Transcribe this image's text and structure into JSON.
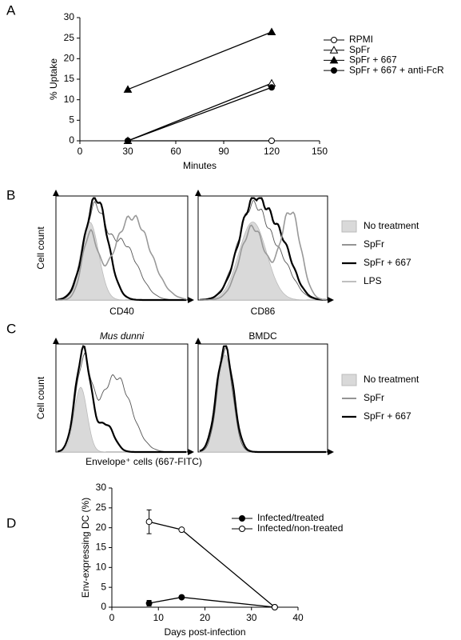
{
  "chart_data": [
    {
      "type": "line",
      "panel": "A",
      "xlabel": "Minutes",
      "ylabel": "% Uptake",
      "x": [
        30,
        120
      ],
      "xlim": [
        0,
        150
      ],
      "xticks": [
        0,
        30,
        60,
        90,
        120,
        150
      ],
      "ylim": [
        0,
        30
      ],
      "yticks": [
        0,
        5,
        10,
        15,
        20,
        25,
        30
      ],
      "legend": "right",
      "series": [
        {
          "name": "RPMI",
          "color": "#000000",
          "marker": "circle",
          "filled": false,
          "values": [
            0,
            0
          ]
        },
        {
          "name": "SpFr",
          "color": "#000000",
          "marker": "triangle",
          "filled": false,
          "values": [
            0,
            14
          ]
        },
        {
          "name": "SpFr + 667",
          "color": "#000000",
          "marker": "triangle",
          "filled": true,
          "values": [
            12.5,
            26.5
          ]
        },
        {
          "name": "SpFr + 667 + anti-FcR",
          "color": "#000000",
          "marker": "circle",
          "filled": true,
          "values": [
            0,
            13
          ]
        }
      ]
    },
    {
      "type": "density",
      "panel": "B",
      "ylabel": "Cell count",
      "xlabels": [
        "CD40",
        "CD86"
      ],
      "series": [
        {
          "name": "No treatment",
          "color": "#d9d9d9"
        },
        {
          "name": "SpFr",
          "color": "#555555"
        },
        {
          "name": "SpFr + 667",
          "color": "#000000"
        },
        {
          "name": "LPS",
          "color": "#999999"
        }
      ]
    },
    {
      "type": "density",
      "panel": "C",
      "ylabel": "Cell count",
      "titles": [
        "Mus dunni",
        "BMDC"
      ],
      "xlabel": "Envelope⁺ cells (667-FITC)",
      "series": [
        {
          "name": "No treatment",
          "color": "#d9d9d9"
        },
        {
          "name": "SpFr",
          "color": "#555555"
        },
        {
          "name": "SpFr + 667",
          "color": "#000000"
        }
      ]
    },
    {
      "type": "line",
      "panel": "D",
      "xlabel": "Days post-infection",
      "ylabel": "Env-expressing DC (%)",
      "x": [
        8,
        15,
        35
      ],
      "xlim": [
        0,
        40
      ],
      "xticks": [
        0,
        10,
        20,
        30,
        40
      ],
      "ylim": [
        0,
        30
      ],
      "yticks": [
        0,
        5,
        10,
        15,
        20,
        25,
        30
      ],
      "legend": "top",
      "series": [
        {
          "name": "Infected/treated",
          "color": "#000000",
          "marker": "circle",
          "filled": true,
          "values": [
            1,
            2.5,
            0
          ],
          "errors": [
            0.7,
            0.3,
            0
          ]
        },
        {
          "name": "Infected/non-treated",
          "color": "#000000",
          "marker": "circle",
          "filled": false,
          "values": [
            21.5,
            19.5,
            0
          ],
          "errors": [
            3,
            0,
            0
          ]
        }
      ]
    }
  ]
}
